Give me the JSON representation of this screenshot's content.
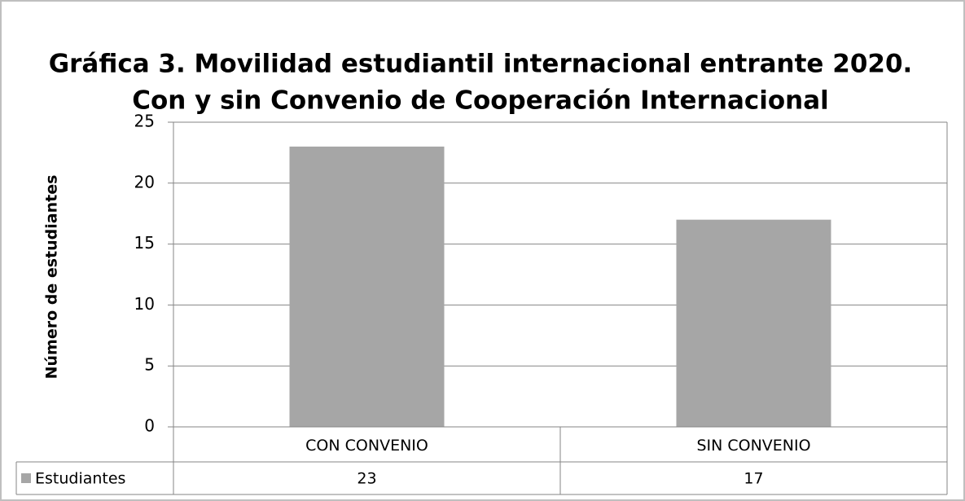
{
  "chart_data": {
    "type": "bar",
    "title": [
      "Gráfica 3. Movilidad estudiantil internacional entrante 2020.",
      "Con y sin Convenio de Cooperación Internacional"
    ],
    "y_label": "Número de estudiantes",
    "categories": [
      "CON CONVENIO",
      "SIN CONVENIO"
    ],
    "series": [
      {
        "name": "Estudiantes",
        "color": "#a6a6a6",
        "values": [
          23,
          17
        ]
      }
    ],
    "ylim": [
      0,
      25
    ],
    "yticks": [
      0,
      5,
      10,
      15,
      20,
      25
    ],
    "grid": true,
    "data_table": true
  }
}
